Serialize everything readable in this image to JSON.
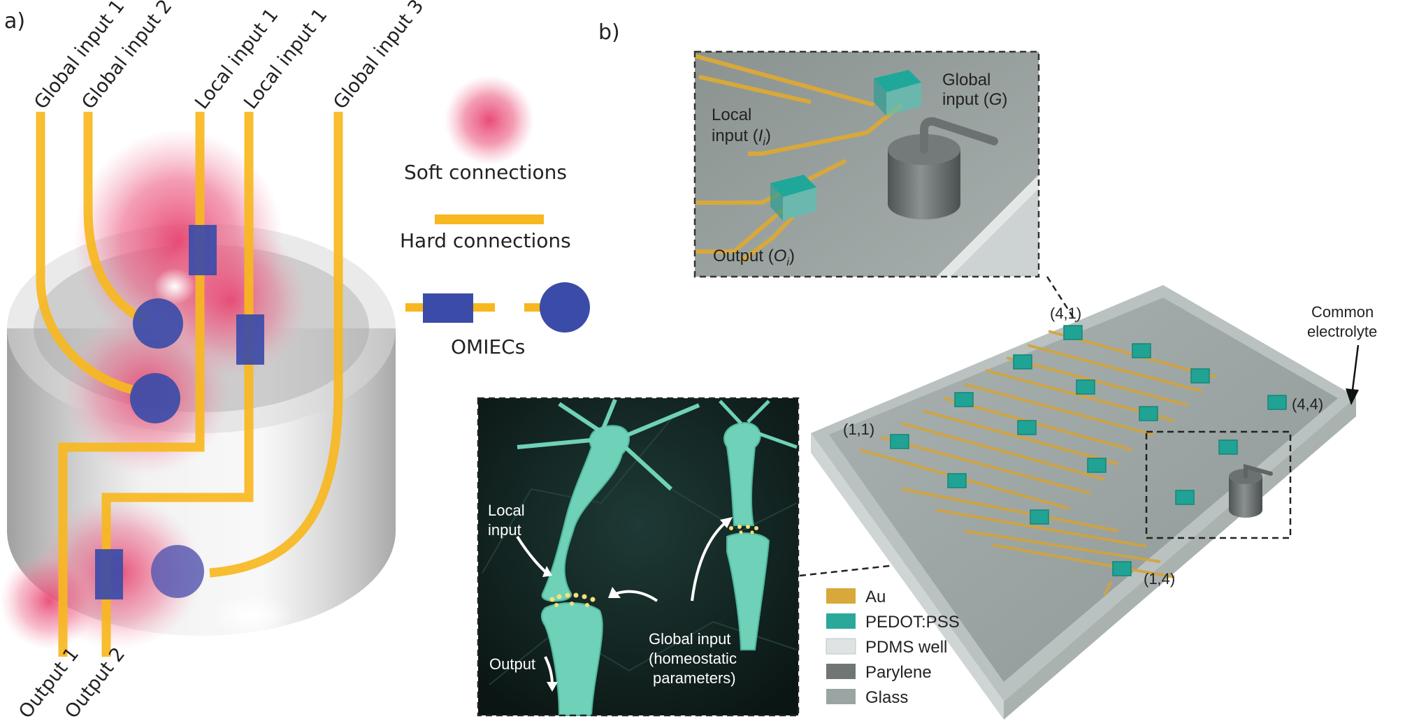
{
  "panel_a": {
    "label": "a)",
    "inputs": [
      "Global input 1",
      "Global input 2",
      "Local input 1",
      "Local input 1",
      "Global input 3"
    ],
    "outputs": [
      "Output 1",
      "Output 2"
    ],
    "legend": {
      "soft": "Soft connections",
      "hard": "Hard connections",
      "omiec": "OMIECs"
    },
    "colors": {
      "soft": "#e8436f",
      "hard": "#f7b71e",
      "omiec": "#3b4ca8",
      "base": "#b5b5b5"
    }
  },
  "panel_b": {
    "label": "b)",
    "zoom": {
      "global_input": "Global",
      "global_input_2": "input (",
      "global_sym": "G",
      "local_input": "Local",
      "local_input_2": "input (",
      "local_sym": "I",
      "local_sub": "i",
      "output": "Output (",
      "output_sym": "O",
      "output_sub": "i",
      "close": ")"
    },
    "array": {
      "corner_41": "(4,1)",
      "corner_44": "(4,4)",
      "corner_11": "(1,1)",
      "corner_14": "(1,4)",
      "electrolyte_1": "Common",
      "electrolyte_2": "electrolyte"
    },
    "neuron": {
      "local_1": "Local",
      "local_2": "input",
      "output": "Output",
      "global_1": "Global input",
      "global_2": "(homeostatic",
      "global_3": "parameters)"
    },
    "legend": [
      {
        "label": "Au",
        "color": "#d9a83a"
      },
      {
        "label": "PEDOT:PSS",
        "color": "#2aa89a"
      },
      {
        "label": "PDMS well",
        "color": "#dfe3e3"
      },
      {
        "label": "Parylene",
        "color": "#6f7673"
      },
      {
        "label": "Glass",
        "color": "#9aa5a3"
      }
    ]
  }
}
